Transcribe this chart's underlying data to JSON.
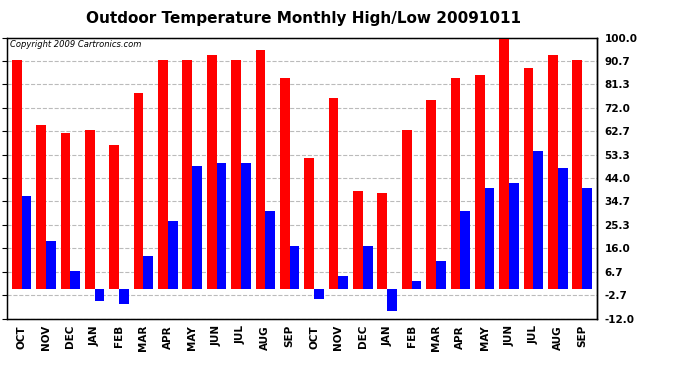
{
  "title": "Outdoor Temperature Monthly High/Low 20091011",
  "copyright": "Copyright 2009 Cartronics.com",
  "labels": [
    "OCT",
    "NOV",
    "DEC",
    "JAN",
    "FEB",
    "MAR",
    "APR",
    "MAY",
    "JUN",
    "JUL",
    "AUG",
    "SEP",
    "OCT",
    "NOV",
    "DEC",
    "JAN",
    "FEB",
    "MAR",
    "APR",
    "MAY",
    "JUN",
    "JUL",
    "AUG",
    "SEP"
  ],
  "highs": [
    91,
    65,
    62,
    63,
    57,
    78,
    91,
    91,
    93,
    91,
    95,
    84,
    52,
    76,
    39,
    38,
    63,
    75,
    84,
    85,
    102,
    88,
    93,
    91
  ],
  "lows": [
    37,
    19,
    7,
    -5,
    -6,
    13,
    27,
    49,
    50,
    50,
    31,
    17,
    -4,
    5,
    17,
    -9,
    3,
    11,
    31,
    40,
    42,
    55,
    48,
    40
  ],
  "ytick_vals": [
    -12.0,
    -2.7,
    6.7,
    16.0,
    25.3,
    34.7,
    44.0,
    53.3,
    62.7,
    72.0,
    81.3,
    90.7,
    100.0
  ],
  "ytick_labels": [
    "-12.0",
    "-2.7",
    "6.7",
    "16.0",
    "25.3",
    "34.7",
    "44.0",
    "53.3",
    "62.7",
    "72.0",
    "81.3",
    "90.7",
    "100.0"
  ],
  "ymin": -12.0,
  "ymax": 100.0,
  "bar_color_high": "#ff0000",
  "bar_color_low": "#0000ff",
  "bg_color": "#ffffff",
  "grid_color": "#bbbbbb",
  "title_fontsize": 11,
  "tick_fontsize": 7.5,
  "copyright_fontsize": 6,
  "bar_width": 0.4
}
